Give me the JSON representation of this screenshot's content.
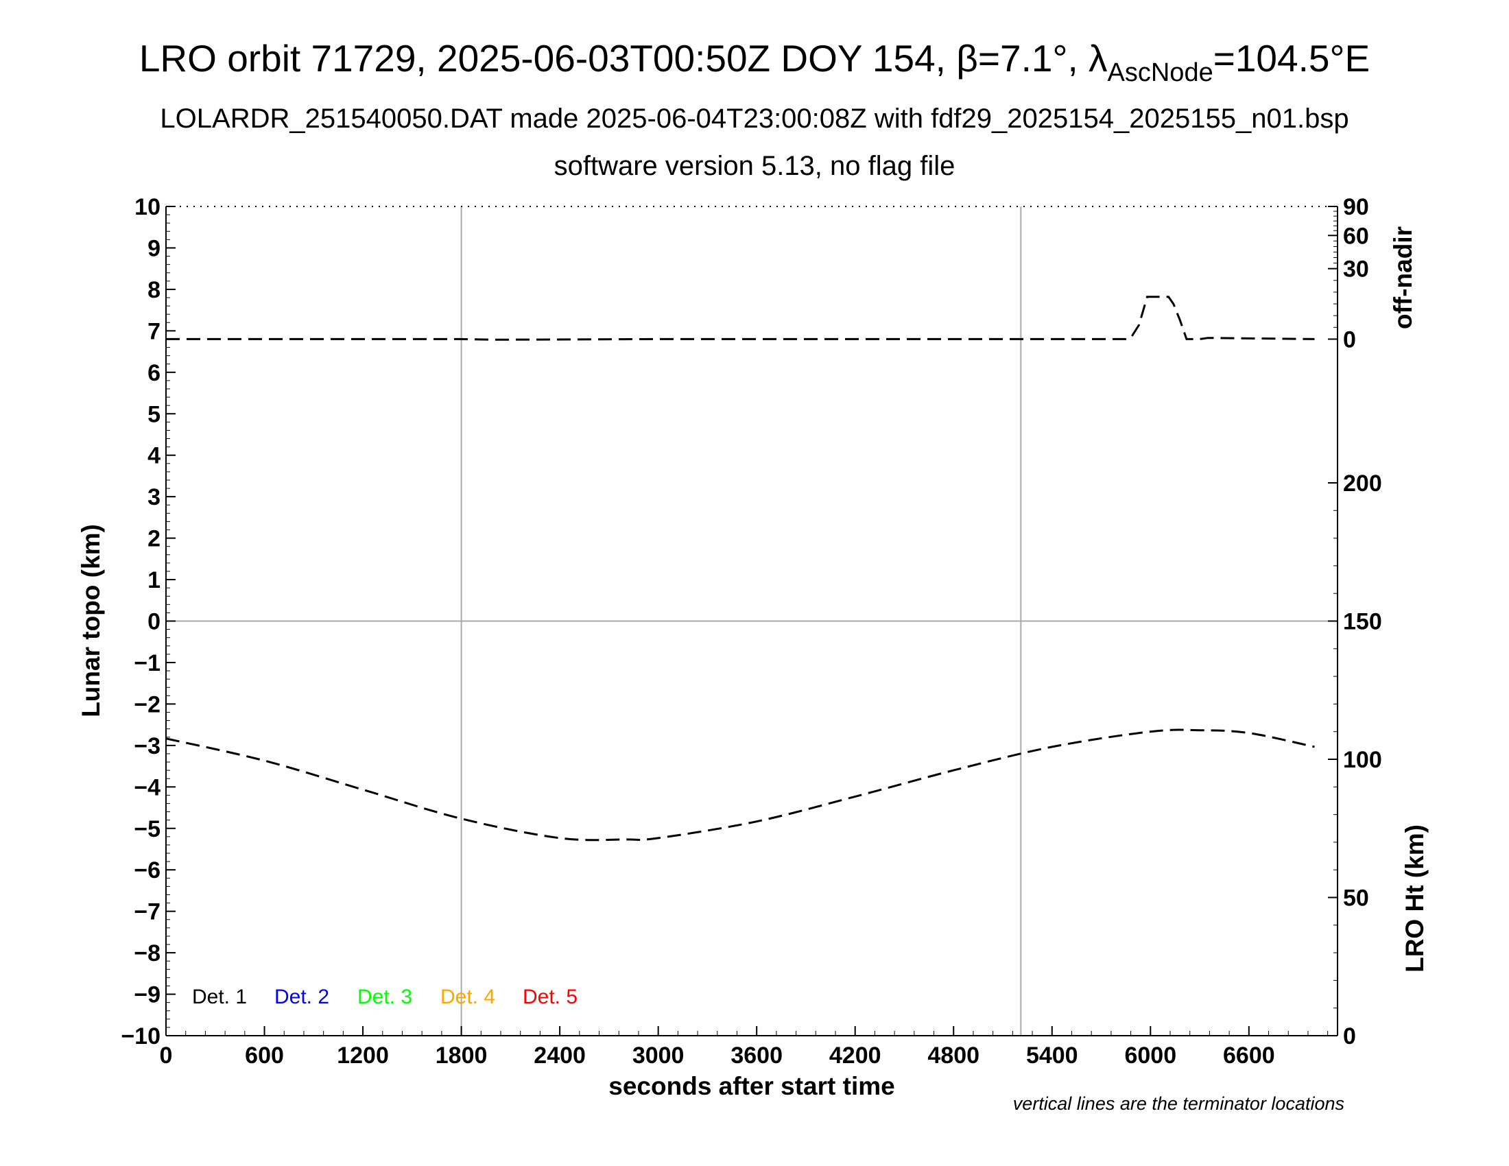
{
  "title": {
    "main_prefix": "LRO orbit 71729, 2025-06-03T00:50Z DOY 154, ",
    "beta_symbol": "β",
    "beta_value": "=7.1°, ",
    "lambda_symbol": "λ",
    "lambda_subscript": "AscNode",
    "lambda_value": "=104.5°E",
    "subtitle": "LOLARDR_251540050.DAT made 2025-06-04T23:00:08Z with fdf29_2025154_2025155_n01.bsp",
    "version_line": "software version 5.13, no flag file"
  },
  "footnote": "vertical lines are the terminator locations",
  "colors": {
    "axis": "#000000",
    "grid": "#aaaaaa",
    "curve": "#000000"
  },
  "chart_data": {
    "type": "line",
    "xlabel": "seconds after start time",
    "ylabel_left": "Lunar topo (km)",
    "ylabel_right_top": "off-nadir",
    "ylabel_right_bottom": "LRO Ht (km)",
    "xlim": [
      0,
      7140
    ],
    "ylim": [
      -10,
      10
    ],
    "x_ticks": [
      0,
      600,
      1200,
      1800,
      2400,
      3000,
      3600,
      4200,
      4800,
      5400,
      6000,
      6600
    ],
    "x_tick_labels": [
      "0",
      "600",
      "1200",
      "1800",
      "2400",
      "3000",
      "3600",
      "4200",
      "4800",
      "5400",
      "6000",
      "6600"
    ],
    "y_ticks": [
      10,
      9,
      8,
      7,
      6,
      5,
      4,
      3,
      2,
      1,
      0,
      -1,
      -2,
      -3,
      -4,
      -5,
      -6,
      -7,
      -8,
      -9,
      -10
    ],
    "y_tick_labels": [
      "10",
      "9",
      "8",
      "7",
      "6",
      "5",
      "4",
      "3",
      "2",
      "1",
      "0",
      "−1",
      "−2",
      "−3",
      "−4",
      "−5",
      "−6",
      "−7",
      "−8",
      "−9",
      "−10"
    ],
    "right_axis_off_nadir": {
      "note": "off-nadir angle in degrees, nonlinear scale",
      "ticks": [
        0,
        30,
        60,
        90
      ],
      "tick_labels": [
        "0",
        "30",
        "60",
        "90"
      ],
      "ticks_topo_equiv": [
        6.8,
        8.5,
        9.3,
        10
      ]
    },
    "right_axis_lro_ht": {
      "ticks": [
        0,
        50,
        100,
        150,
        200
      ],
      "tick_labels": [
        "0",
        "50",
        "100",
        "150",
        "200"
      ],
      "ylim_km": [
        0,
        300
      ]
    },
    "terminator_lines_x": [
      1800,
      5210
    ],
    "series": [
      {
        "name": "off-nadir",
        "axis": "off-nadir",
        "style": "dashed",
        "x": [
          0,
          1800,
          2000,
          3000,
          4000,
          5000,
          5850,
          5880,
          5930,
          5980,
          6050,
          6110,
          6140,
          6180,
          6220,
          6300,
          6350,
          7000
        ],
        "y": [
          0,
          0,
          -0.3,
          0,
          0,
          0,
          0,
          0.5,
          6,
          18,
          18,
          18,
          15,
          8,
          0,
          0,
          0.5,
          0
        ]
      },
      {
        "name": "LRO Ht",
        "axis": "lro-ht",
        "style": "dashed",
        "x": [
          0,
          600,
          1200,
          1800,
          2400,
          2800,
          3000,
          3600,
          4200,
          4800,
          5400,
          6000,
          6300,
          6600,
          7000
        ],
        "y": [
          107.5,
          99.5,
          89.0,
          78.5,
          71.5,
          71.0,
          71.5,
          77.5,
          86.5,
          96.0,
          104.5,
          110.0,
          110.5,
          109.5,
          104.5
        ]
      }
    ],
    "legend": {
      "placement": "bottom-left",
      "entries": [
        {
          "label": "Det. 1",
          "color": "#000000"
        },
        {
          "label": "Det. 2",
          "color": "#0000ff"
        },
        {
          "label": "Det. 3",
          "color": "#00ff00"
        },
        {
          "label": "Det. 4",
          "color": "#ffa500"
        },
        {
          "label": "Det. 5",
          "color": "#ff0000"
        }
      ]
    }
  }
}
